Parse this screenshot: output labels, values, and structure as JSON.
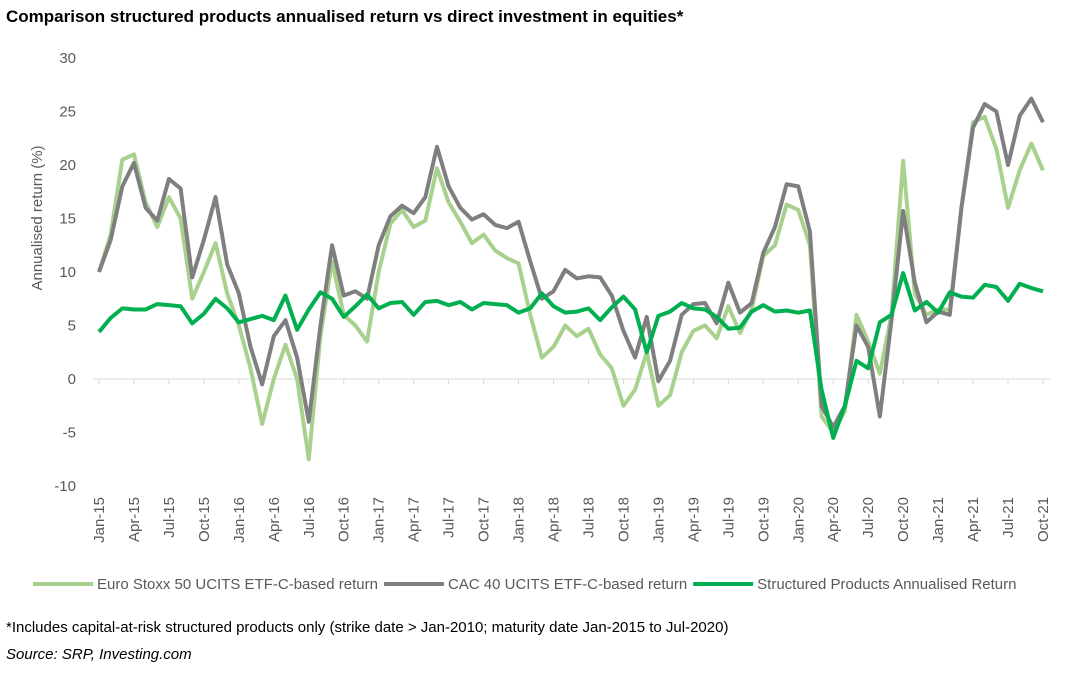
{
  "chart_data": {
    "type": "line",
    "title": "Comparison structured products annualised return vs direct investment in equities*",
    "y_label": "Annualised return (%)",
    "footnote": "*Includes capital-at-risk structured products only (strike date > Jan-2010; maturity date Jan-2015 to Jul-2020)",
    "source": "Source: SRP, Investing.com",
    "categories": [
      "Jan-15",
      null,
      null,
      "Apr-15",
      null,
      null,
      "Jul-15",
      null,
      null,
      "Oct-15",
      null,
      null,
      "Jan-16",
      null,
      null,
      "Apr-16",
      null,
      null,
      "Jul-16",
      null,
      null,
      "Oct-16",
      null,
      null,
      "Jan-17",
      null,
      null,
      "Apr-17",
      null,
      null,
      "Jul-17",
      null,
      null,
      "Oct-17",
      null,
      null,
      "Jan-18",
      null,
      null,
      "Apr-18",
      null,
      null,
      "Jul-18",
      null,
      null,
      "Oct-18",
      null,
      null,
      "Jan-19",
      null,
      null,
      "Apr-19",
      null,
      null,
      "Jul-19",
      null,
      null,
      "Oct-19",
      null,
      null,
      "Jan-20",
      null,
      null,
      "Apr-20",
      null,
      null,
      "Jul-20",
      null,
      null,
      "Oct-20",
      null,
      null,
      "Jan-21",
      null,
      null,
      "Apr-21",
      null,
      null,
      "Jul-21",
      null,
      null,
      "Oct-21"
    ],
    "series": [
      {
        "name": "Euro Stoxx 50 UCITS ETF-C-based return",
        "color": "#a9d18e",
        "values": [
          10,
          13.5,
          20.5,
          21,
          16.5,
          14.2,
          17,
          15,
          7.5,
          10,
          12.7,
          8,
          5,
          1,
          -4.2,
          0,
          3.2,
          0,
          -7.5,
          4,
          11,
          6,
          5,
          3.5,
          10,
          14.5,
          15.8,
          14.2,
          14.8,
          19.7,
          16.5,
          14.7,
          12.7,
          13.5,
          12,
          11.3,
          10.8,
          6,
          2,
          3,
          5,
          4,
          4.7,
          2.3,
          1,
          -2.5,
          -1,
          2.5,
          -2.5,
          -1.5,
          2.5,
          4.5,
          5,
          3.8,
          6.8,
          4.3,
          6.5,
          11.5,
          12.5,
          16.3,
          15.8,
          12.5,
          -3.5,
          -5,
          -3,
          6,
          3.5,
          0.5,
          6,
          20.4,
          8,
          6,
          6.5,
          6.5,
          16,
          24,
          24.5,
          21.5,
          16,
          19.5,
          22,
          19.5
        ]
      },
      {
        "name": "CAC 40 UCITS ETF-C-based return",
        "color": "#7f7f7f",
        "values": [
          10,
          13,
          18,
          20.2,
          16,
          14.8,
          18.7,
          17.8,
          9.5,
          13,
          17,
          10.7,
          8,
          3,
          -0.5,
          4,
          5.5,
          2,
          -4,
          5,
          12.5,
          7.8,
          8.2,
          7.5,
          12.5,
          15.2,
          16.2,
          15.5,
          17,
          21.7,
          18,
          16,
          14.9,
          15.4,
          14.4,
          14.1,
          14.7,
          11,
          7.5,
          8.2,
          10.2,
          9.4,
          9.6,
          9.5,
          7.8,
          4.5,
          2,
          5.8,
          -0.2,
          1.7,
          6,
          7,
          7.1,
          5.2,
          9,
          6.2,
          7.1,
          11.8,
          14.2,
          18.2,
          18,
          13.8,
          -2.5,
          -4.5,
          -2.5,
          5,
          3,
          -3.5,
          5.5,
          15.7,
          9,
          5.3,
          6.3,
          6,
          16,
          23.5,
          25.7,
          25,
          20,
          24.6,
          26.2,
          24
        ]
      },
      {
        "name": "Structured Products Annualised Return",
        "color": "#00b050",
        "values": [
          4.4,
          5.7,
          6.6,
          6.5,
          6.5,
          7,
          6.9,
          6.8,
          5.2,
          6.1,
          7.5,
          6.6,
          5.3,
          5.6,
          5.9,
          5.5,
          7.8,
          4.6,
          6.5,
          8.1,
          7.5,
          5.8,
          6.8,
          7.9,
          6.6,
          7.1,
          7.2,
          6,
          7.2,
          7.3,
          6.9,
          7.2,
          6.5,
          7.1,
          7,
          6.9,
          6.2,
          6.6,
          8,
          6.8,
          6.2,
          6.3,
          6.6,
          5.5,
          6.7,
          7.7,
          6.5,
          2.5,
          5.9,
          6.3,
          7.1,
          6.6,
          6.5,
          5.8,
          4.7,
          4.8,
          6.3,
          6.9,
          6.3,
          6.4,
          6.2,
          6.4,
          -1,
          -5.5,
          -2.5,
          1.7,
          1,
          5.3,
          6,
          9.9,
          6.4,
          7.2,
          6.2,
          8.1,
          7.7,
          7.6,
          8.8,
          8.6,
          7.3,
          8.9,
          8.5,
          8.2
        ]
      }
    ],
    "ylim": [
      -10,
      30
    ],
    "yticks": [
      -10,
      -5,
      0,
      5,
      10,
      15,
      20,
      25,
      30
    ],
    "legend": "bottom"
  }
}
